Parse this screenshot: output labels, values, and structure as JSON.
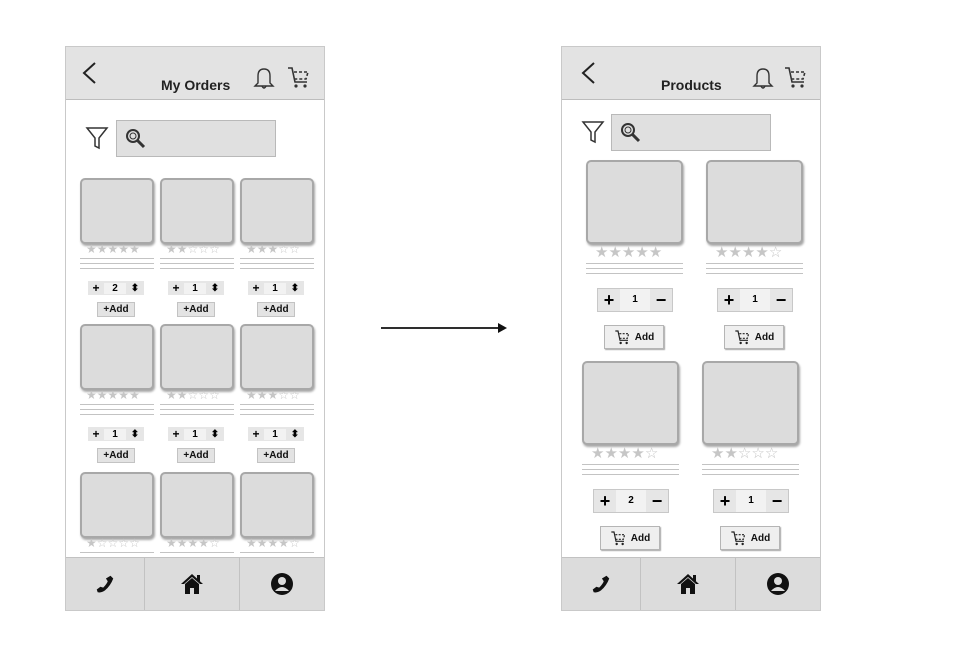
{
  "screens": {
    "left": {
      "title": "My Orders",
      "columns": 3,
      "products": [
        {
          "rating": 5,
          "qty": "2",
          "add_label": "+Add"
        },
        {
          "rating": 2,
          "qty": "1",
          "add_label": "+Add"
        },
        {
          "rating": 3,
          "qty": "1",
          "add_label": "+Add"
        },
        {
          "rating": 5,
          "qty": "1",
          "add_label": "+Add"
        },
        {
          "rating": 2,
          "qty": "1",
          "add_label": "+Add"
        },
        {
          "rating": 3,
          "qty": "1",
          "add_label": "+Add"
        },
        {
          "rating": 1
        },
        {
          "rating": 4
        },
        {
          "rating": 4
        }
      ]
    },
    "right": {
      "title": "Products",
      "columns": 2,
      "products": [
        {
          "rating": 5,
          "qty": "1",
          "add_label": "Add"
        },
        {
          "rating": 4,
          "qty": "1",
          "add_label": "Add"
        },
        {
          "rating": 4,
          "qty": "2",
          "add_label": "Add"
        },
        {
          "rating": 2,
          "qty": "1",
          "add_label": "Add"
        }
      ]
    }
  },
  "icons": {
    "back": "chevron-left-icon",
    "notifications": "bell-icon",
    "cart": "cart-icon",
    "filter": "filter-icon",
    "search": "magnifier-icon",
    "footer": [
      "phone-icon",
      "home-icon",
      "user-icon"
    ]
  },
  "colors": {
    "header": "#e3e3e3",
    "card": "#dcdcdc",
    "star": "#c6c6c6",
    "footer": "#dcdcdc"
  }
}
